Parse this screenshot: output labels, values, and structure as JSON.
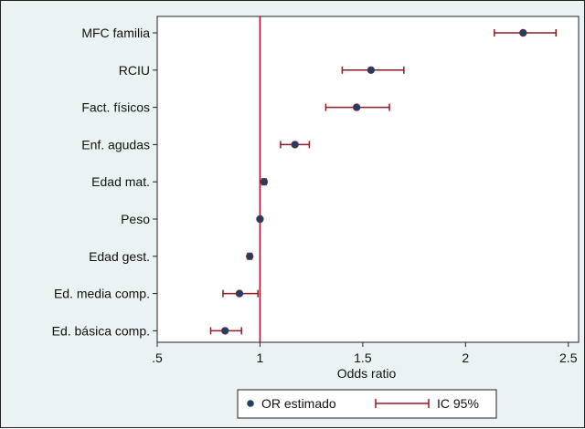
{
  "chart_data": {
    "type": "scatter",
    "subtype": "forest-plot",
    "title": "",
    "xlabel": "Odds ratio",
    "ylabel": "",
    "xlim": [
      0.5,
      2.55
    ],
    "xticks": [
      0.5,
      1,
      1.5,
      2,
      2.5
    ],
    "xtick_labels": [
      ".5",
      "1",
      "1.5",
      "2",
      "2.5"
    ],
    "reference_line": 1,
    "grid": false,
    "legend_position": "bottom",
    "colors": {
      "point": "#1f3f66",
      "interval": "#8b1c24",
      "reference": "#a0162a"
    },
    "categories": [
      "MFC familia",
      "RCIU",
      "Fact. físicos",
      "Enf. agudas",
      "Edad mat.",
      "Peso",
      "Edad gest.",
      "Ed. media comp.",
      "Ed. básica comp."
    ],
    "series": [
      {
        "name": "OR estimado",
        "values": [
          2.28,
          1.54,
          1.47,
          1.17,
          1.02,
          1.0,
          0.95,
          0.9,
          0.83
        ]
      },
      {
        "name": "IC 95%",
        "lower": [
          2.14,
          1.4,
          1.32,
          1.1,
          1.01,
          0.995,
          0.94,
          0.82,
          0.76
        ],
        "upper": [
          2.44,
          1.7,
          1.63,
          1.24,
          1.03,
          1.005,
          0.96,
          0.99,
          0.91
        ]
      }
    ]
  }
}
